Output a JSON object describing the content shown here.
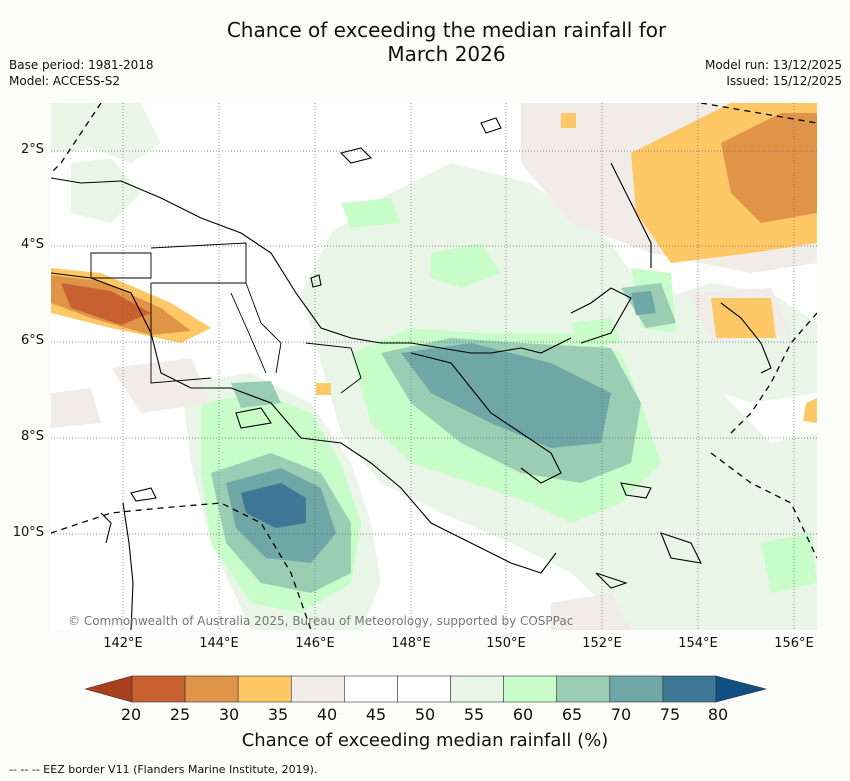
{
  "header": {
    "title_line1": "Chance of exceeding the median rainfall for",
    "title_line2": "March 2026",
    "base_period": "Base period: 1981-2018",
    "model": "Model: ACCESS-S2",
    "model_run": "Model run: 13/12/2025",
    "issued": "Issued: 15/12/2025"
  },
  "map": {
    "lat_labels": [
      "2°S",
      "4°S",
      "6°S",
      "8°S",
      "10°S"
    ],
    "lon_labels": [
      "142°E",
      "144°E",
      "146°E",
      "148°E",
      "150°E",
      "152°E",
      "154°E",
      "156°E"
    ],
    "copyright": "© Commonwealth of Australia 2025, Bureau of Meteorology, supported by COSPPac"
  },
  "colorbar": {
    "ticks": [
      "20",
      "25",
      "30",
      "35",
      "40",
      "45",
      "50",
      "55",
      "60",
      "65",
      "70",
      "75",
      "80"
    ],
    "colors": [
      "#a8401d",
      "#c8612f",
      "#e09448",
      "#fec866",
      "#f2ece8",
      "#ffffff",
      "#ffffff",
      "#e9f5e7",
      "#c8fcc8",
      "#9bcdb5",
      "#6fa6a6",
      "#3e7896",
      "#114f82"
    ],
    "label": "Chance of exceeding median rainfall (%)"
  },
  "legend": {
    "eez_note": "--  --  -- EEZ border V11 (Flanders Marine Institute, 2019)."
  }
}
